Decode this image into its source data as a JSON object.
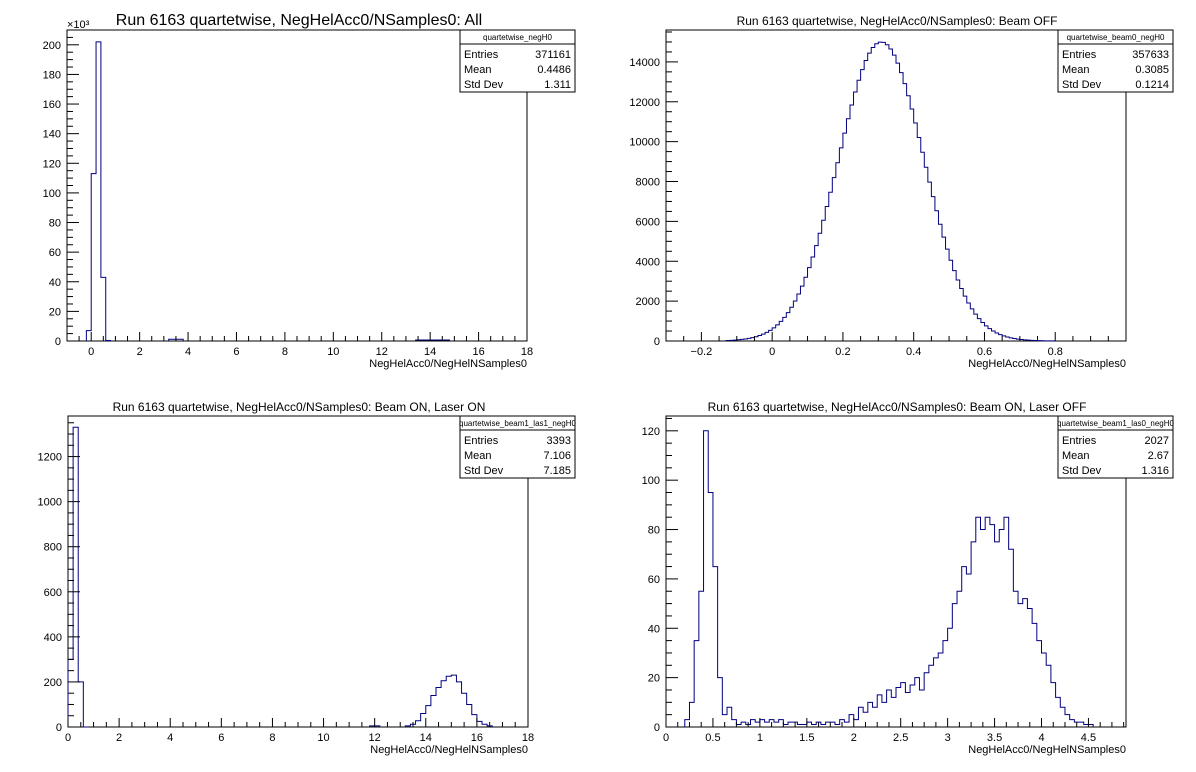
{
  "chart_data": [
    {
      "type": "histogram",
      "title": "Run 6163 quartetwise, NegHelAcc0/NSamples0: All",
      "xlabel": "NegHelAcc0/NegHelNSamples0",
      "ylabel": "",
      "xlim": [
        -1,
        18
      ],
      "ylim": [
        0,
        210
      ],
      "y_multiplier_label": "×10³",
      "xticks": [
        0,
        2,
        4,
        6,
        8,
        10,
        12,
        14,
        16,
        18
      ],
      "yticks": [
        0,
        20,
        40,
        60,
        80,
        100,
        120,
        140,
        160,
        180,
        200
      ],
      "bin_width": 0.2,
      "bins": [
        [
          -0.2,
          7
        ],
        [
          0,
          113
        ],
        [
          0.2,
          202
        ],
        [
          0.4,
          43
        ],
        [
          0.6,
          0.3
        ],
        [
          3.2,
          1.2
        ],
        [
          3.4,
          1.2
        ],
        [
          3.6,
          1.2
        ],
        [
          13.4,
          0.7
        ],
        [
          13.6,
          0.7
        ],
        [
          13.8,
          0.7
        ],
        [
          14.0,
          0.7
        ],
        [
          14.2,
          0.7
        ],
        [
          14.4,
          0.7
        ],
        [
          14.6,
          0.7
        ]
      ],
      "stats": {
        "name": "quartetwise_negH0",
        "rows": [
          [
            "Entries",
            "371161"
          ],
          [
            "Mean",
            "0.4486"
          ],
          [
            "Std Dev",
            "1.311"
          ]
        ]
      },
      "grid": false
    },
    {
      "type": "histogram",
      "title": "Run 6163 quartetwise, NegHelAcc0/NSamples0: Beam OFF",
      "xlabel": "NegHelAcc0/NegHelNSamples0",
      "ylabel": "",
      "xlim": [
        -0.3,
        1.0
      ],
      "ylim": [
        0,
        15600
      ],
      "xticks": [
        -0.2,
        0,
        0.2,
        0.4,
        0.6,
        0.8
      ],
      "yticks": [
        0,
        2000,
        4000,
        6000,
        8000,
        10000,
        12000,
        14000
      ],
      "gaussian": {
        "mean": 0.3085,
        "sigma": 0.1214,
        "peak": 15000,
        "bin_width": 0.01,
        "xmin": -0.13,
        "xmax": 0.8
      },
      "stats": {
        "name": "quartetwise_beam0_negH0",
        "rows": [
          [
            "Entries",
            "357633"
          ],
          [
            "Mean",
            "0.3085"
          ],
          [
            "Std Dev",
            "0.1214"
          ]
        ]
      },
      "grid": false
    },
    {
      "type": "histogram",
      "title": "Run 6163 quartetwise, NegHelAcc0/NSamples0: Beam ON, Laser ON",
      "xlabel": "NegHelAcc0/NegHelNSamples0",
      "ylabel": "",
      "xlim": [
        0,
        18
      ],
      "ylim": [
        0,
        1380
      ],
      "xticks": [
        0,
        2,
        4,
        6,
        8,
        10,
        12,
        14,
        16,
        18
      ],
      "yticks": [
        0,
        200,
        400,
        600,
        800,
        1000,
        1200
      ],
      "bin_width": 0.2,
      "bins": [
        [
          0,
          300
        ],
        [
          0.2,
          1330
        ],
        [
          0.4,
          200
        ],
        [
          0.6,
          0
        ],
        [
          11.8,
          5
        ],
        [
          12.0,
          5
        ],
        [
          13.2,
          5
        ],
        [
          13.4,
          12
        ],
        [
          13.6,
          28
        ],
        [
          13.8,
          60
        ],
        [
          14.0,
          95
        ],
        [
          14.2,
          140
        ],
        [
          14.4,
          175
        ],
        [
          14.6,
          205
        ],
        [
          14.8,
          225
        ],
        [
          15.0,
          230
        ],
        [
          15.2,
          200
        ],
        [
          15.4,
          150
        ],
        [
          15.6,
          100
        ],
        [
          15.8,
          55
        ],
        [
          16.0,
          25
        ],
        [
          16.2,
          12
        ],
        [
          16.4,
          5
        ]
      ],
      "stats": {
        "name": "quartetwise_beam1_las1_negH0",
        "rows": [
          [
            "Entries",
            "3393"
          ],
          [
            "Mean",
            "7.106"
          ],
          [
            "Std Dev",
            "7.185"
          ]
        ]
      },
      "grid": false
    },
    {
      "type": "histogram",
      "title": "Run 6163 quartetwise, NegHelAcc0/NSamples0: Beam ON, Laser OFF",
      "xlabel": "NegHelAcc0/NegHelNSamples0",
      "ylabel": "",
      "xlim": [
        0,
        4.9
      ],
      "ylim": [
        0,
        126
      ],
      "xticks": [
        0,
        0.5,
        1,
        1.5,
        2,
        2.5,
        3,
        3.5,
        4,
        4.5
      ],
      "xticklabels": [
        "0",
        "0.5",
        "1",
        "1.5",
        "2",
        "2.5",
        "3",
        "3.5",
        "4",
        "4.5"
      ],
      "yticks": [
        0,
        20,
        40,
        60,
        80,
        100,
        120
      ],
      "bin_width": 0.05,
      "bins": [
        [
          0.2,
          3
        ],
        [
          0.25,
          10
        ],
        [
          0.3,
          35
        ],
        [
          0.35,
          55
        ],
        [
          0.4,
          120
        ],
        [
          0.45,
          95
        ],
        [
          0.5,
          65
        ],
        [
          0.55,
          20
        ],
        [
          0.6,
          5
        ],
        [
          0.65,
          8
        ],
        [
          0.7,
          3
        ],
        [
          0.75,
          1
        ],
        [
          0.8,
          2
        ],
        [
          0.85,
          1
        ],
        [
          0.9,
          3
        ],
        [
          0.95,
          2
        ],
        [
          1.0,
          3
        ],
        [
          1.05,
          2
        ],
        [
          1.1,
          3
        ],
        [
          1.15,
          2
        ],
        [
          1.2,
          3
        ],
        [
          1.25,
          1
        ],
        [
          1.3,
          2
        ],
        [
          1.35,
          2
        ],
        [
          1.4,
          1
        ],
        [
          1.45,
          1
        ],
        [
          1.5,
          2
        ],
        [
          1.55,
          1
        ],
        [
          1.6,
          2
        ],
        [
          1.65,
          1
        ],
        [
          1.7,
          2
        ],
        [
          1.75,
          2
        ],
        [
          1.8,
          1
        ],
        [
          1.85,
          3
        ],
        [
          1.9,
          2
        ],
        [
          1.95,
          5
        ],
        [
          2.0,
          3
        ],
        [
          2.05,
          8
        ],
        [
          2.1,
          6
        ],
        [
          2.15,
          10
        ],
        [
          2.2,
          8
        ],
        [
          2.25,
          13
        ],
        [
          2.3,
          10
        ],
        [
          2.35,
          15
        ],
        [
          2.4,
          12
        ],
        [
          2.45,
          16
        ],
        [
          2.5,
          18
        ],
        [
          2.55,
          14
        ],
        [
          2.6,
          17
        ],
        [
          2.65,
          20
        ],
        [
          2.7,
          15
        ],
        [
          2.75,
          22
        ],
        [
          2.8,
          25
        ],
        [
          2.85,
          28
        ],
        [
          2.9,
          30
        ],
        [
          2.95,
          35
        ],
        [
          3.0,
          40
        ],
        [
          3.05,
          50
        ],
        [
          3.1,
          55
        ],
        [
          3.15,
          65
        ],
        [
          3.2,
          62
        ],
        [
          3.25,
          75
        ],
        [
          3.3,
          85
        ],
        [
          3.35,
          80
        ],
        [
          3.4,
          85
        ],
        [
          3.45,
          82
        ],
        [
          3.5,
          75
        ],
        [
          3.55,
          80
        ],
        [
          3.6,
          85
        ],
        [
          3.65,
          72
        ],
        [
          3.7,
          55
        ],
        [
          3.75,
          50
        ],
        [
          3.8,
          52
        ],
        [
          3.85,
          48
        ],
        [
          3.9,
          42
        ],
        [
          3.95,
          35
        ],
        [
          4.0,
          30
        ],
        [
          4.05,
          25
        ],
        [
          4.1,
          18
        ],
        [
          4.15,
          12
        ],
        [
          4.2,
          8
        ],
        [
          4.25,
          5
        ],
        [
          4.3,
          3
        ],
        [
          4.35,
          2
        ],
        [
          4.4,
          2
        ],
        [
          4.45,
          1
        ],
        [
          4.5,
          1
        ]
      ],
      "stats": {
        "name": "quartetwise_beam1_las0_negH0",
        "rows": [
          [
            "Entries",
            "2027"
          ],
          [
            "Mean",
            "2.67"
          ],
          [
            "Std Dev",
            "1.316"
          ]
        ]
      },
      "grid": false
    }
  ],
  "style": {
    "line_color": "#000080",
    "frame_color": "#000000",
    "background": "#ffffff"
  }
}
